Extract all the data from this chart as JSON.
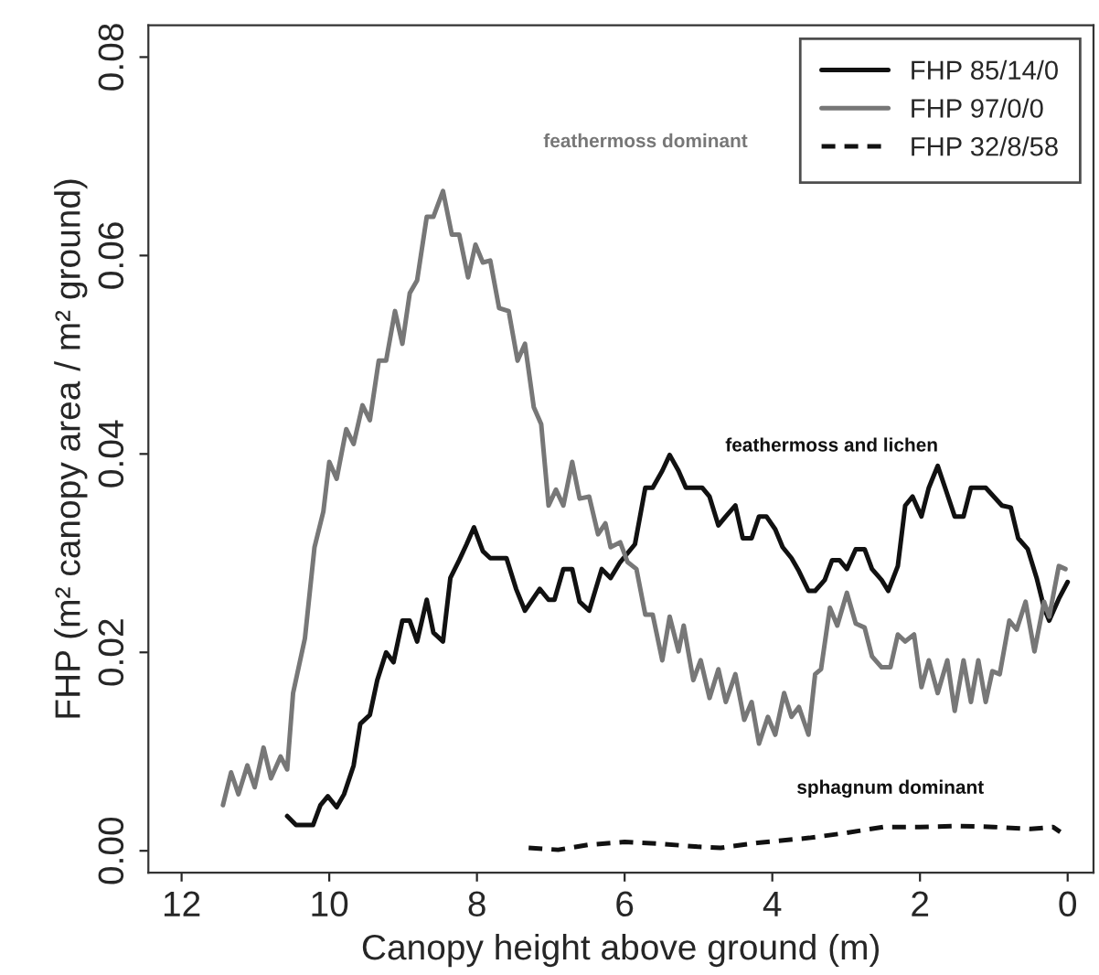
{
  "chart_data": {
    "type": "line",
    "xlabel": "Canopy height above ground (m)",
    "ylabel": "FHP (m² canopy area / m² ground)",
    "xlim": [
      12.45,
      -0.35
    ],
    "ylim": [
      -0.0022,
      0.0832
    ],
    "xticks": [
      12,
      10,
      8,
      6,
      4,
      2,
      0
    ],
    "yticks": [
      {
        "value": 0,
        "label": "0.00"
      },
      {
        "value": 0.02,
        "label": "0.02"
      },
      {
        "value": 0.04,
        "label": "0.04"
      },
      {
        "value": 0.06,
        "label": "0.06"
      },
      {
        "value": 0.08,
        "label": "0.08"
      }
    ],
    "grid": false,
    "legend": "top right",
    "marker": "none",
    "annotations": [
      "feathermoss dominant",
      "feathermoss and lichen",
      "sphagnum dominant"
    ],
    "series": [
      {
        "name": "FHP 85/14/0",
        "color": "#111111",
        "line_style": "solid",
        "x": [
          10.57,
          10.45,
          10.22,
          10.12,
          10.02,
          9.9,
          9.8,
          9.67,
          9.58,
          9.45,
          9.35,
          9.23,
          9.13,
          9.01,
          8.91,
          8.81,
          8.68,
          8.59,
          8.46,
          8.36,
          8.24,
          8.14,
          8.04,
          7.92,
          7.82,
          7.6,
          7.47,
          7.35,
          7.15,
          7.03,
          6.95,
          6.83,
          6.71,
          6.61,
          6.48,
          6.31,
          6.19,
          6.06,
          5.86,
          5.72,
          5.62,
          5.49,
          5.39,
          5.27,
          5.17,
          4.95,
          4.85,
          4.73,
          4.63,
          4.5,
          4.4,
          4.28,
          4.18,
          4.08,
          3.96,
          3.86,
          3.74,
          3.64,
          3.51,
          3.42,
          3.29,
          3.19,
          3.09,
          2.99,
          2.87,
          2.75,
          2.65,
          2.52,
          2.43,
          2.3,
          2.2,
          2.1,
          1.98,
          1.88,
          1.76,
          1.66,
          1.53,
          1.41,
          1.31,
          1.11,
          0.89,
          0.77,
          0.67,
          0.54,
          0.42,
          0.32,
          0.25,
          0.12,
          0.0
        ],
        "values": [
          0.0035,
          0.0026,
          0.0026,
          0.0046,
          0.0055,
          0.0044,
          0.0057,
          0.0086,
          0.0128,
          0.0137,
          0.0172,
          0.02,
          0.019,
          0.0232,
          0.0232,
          0.0211,
          0.0253,
          0.022,
          0.0211,
          0.0275,
          0.0293,
          0.0309,
          0.0326,
          0.0302,
          0.0295,
          0.0295,
          0.0264,
          0.0242,
          0.0264,
          0.0253,
          0.0253,
          0.0284,
          0.0284,
          0.0251,
          0.0242,
          0.0284,
          0.0275,
          0.0291,
          0.0309,
          0.0366,
          0.0366,
          0.0383,
          0.0399,
          0.0383,
          0.0366,
          0.0366,
          0.0357,
          0.0328,
          0.0337,
          0.0348,
          0.0315,
          0.0315,
          0.0337,
          0.0337,
          0.0324,
          0.0306,
          0.0295,
          0.0282,
          0.0262,
          0.0262,
          0.0273,
          0.0293,
          0.0293,
          0.0284,
          0.0304,
          0.0304,
          0.0284,
          0.0273,
          0.0262,
          0.0287,
          0.0348,
          0.0357,
          0.0337,
          0.0366,
          0.0388,
          0.0366,
          0.0337,
          0.0337,
          0.0366,
          0.0366,
          0.0348,
          0.0346,
          0.0315,
          0.0304,
          0.0275,
          0.0245,
          0.0232,
          0.0254,
          0.0271
        ]
      },
      {
        "name": "FHP 97/0/0",
        "color": "#777777",
        "line_style": "solid",
        "x": [
          11.44,
          11.33,
          11.23,
          11.11,
          11.01,
          10.89,
          10.79,
          10.66,
          10.57,
          10.49,
          10.33,
          10.2,
          10.08,
          10.0,
          9.9,
          9.77,
          9.67,
          9.55,
          9.45,
          9.33,
          9.23,
          9.11,
          9.01,
          8.91,
          8.81,
          8.68,
          8.59,
          8.46,
          8.34,
          8.24,
          8.12,
          8.02,
          7.92,
          7.82,
          7.7,
          7.57,
          7.45,
          7.35,
          7.23,
          7.13,
          7.03,
          6.93,
          6.83,
          6.71,
          6.61,
          6.48,
          6.36,
          6.26,
          6.19,
          6.06,
          5.96,
          5.84,
          5.72,
          5.62,
          5.49,
          5.39,
          5.27,
          5.2,
          5.07,
          4.97,
          4.85,
          4.73,
          4.63,
          4.5,
          4.38,
          4.28,
          4.18,
          4.06,
          3.96,
          3.84,
          3.74,
          3.64,
          3.51,
          3.42,
          3.34,
          3.22,
          3.12,
          2.99,
          2.87,
          2.75,
          2.65,
          2.52,
          2.4,
          2.3,
          2.2,
          2.08,
          1.98,
          1.88,
          1.76,
          1.63,
          1.53,
          1.41,
          1.31,
          1.21,
          1.11,
          1.02,
          0.92,
          0.79,
          0.69,
          0.57,
          0.45,
          0.32,
          0.25,
          0.12,
          0.03
        ],
        "values": [
          0.0046,
          0.0079,
          0.0057,
          0.0086,
          0.0064,
          0.0104,
          0.0073,
          0.0095,
          0.0082,
          0.0159,
          0.0214,
          0.0306,
          0.0342,
          0.0392,
          0.0375,
          0.0425,
          0.041,
          0.0449,
          0.0434,
          0.0494,
          0.0494,
          0.0544,
          0.0511,
          0.0562,
          0.0575,
          0.0639,
          0.0639,
          0.0665,
          0.0621,
          0.0621,
          0.0578,
          0.0611,
          0.0593,
          0.0595,
          0.0547,
          0.0544,
          0.0494,
          0.0511,
          0.0447,
          0.043,
          0.0348,
          0.0364,
          0.0348,
          0.0392,
          0.0355,
          0.0357,
          0.0319,
          0.033,
          0.0306,
          0.0311,
          0.0291,
          0.0284,
          0.0238,
          0.0238,
          0.0192,
          0.0236,
          0.0201,
          0.0227,
          0.0172,
          0.0192,
          0.0154,
          0.0183,
          0.015,
          0.0178,
          0.0132,
          0.015,
          0.0108,
          0.0135,
          0.0117,
          0.0159,
          0.0135,
          0.0145,
          0.0117,
          0.0178,
          0.0183,
          0.0245,
          0.0227,
          0.026,
          0.0229,
          0.0225,
          0.0196,
          0.0185,
          0.0185,
          0.0218,
          0.0211,
          0.0218,
          0.0165,
          0.0192,
          0.0159,
          0.0192,
          0.0141,
          0.0192,
          0.015,
          0.0192,
          0.015,
          0.0181,
          0.0178,
          0.0232,
          0.0223,
          0.0251,
          0.0201,
          0.0251,
          0.0236,
          0.0287,
          0.0284
        ]
      },
      {
        "name": "FHP 32/8/58",
        "color": "#111111",
        "line_style": "dashed",
        "x": [
          7.3,
          6.9,
          6.5,
          6.0,
          5.5,
          5.0,
          4.7,
          4.2,
          3.5,
          3.0,
          2.5,
          2.0,
          1.5,
          1.0,
          0.5,
          0.2,
          0.1
        ],
        "values": [
          0.0003,
          0.0001,
          0.0006,
          0.0009,
          0.0007,
          0.0004,
          0.0003,
          0.0008,
          0.0013,
          0.0018,
          0.0024,
          0.0024,
          0.0025,
          0.0024,
          0.0022,
          0.0024,
          0.0019
        ]
      }
    ]
  }
}
